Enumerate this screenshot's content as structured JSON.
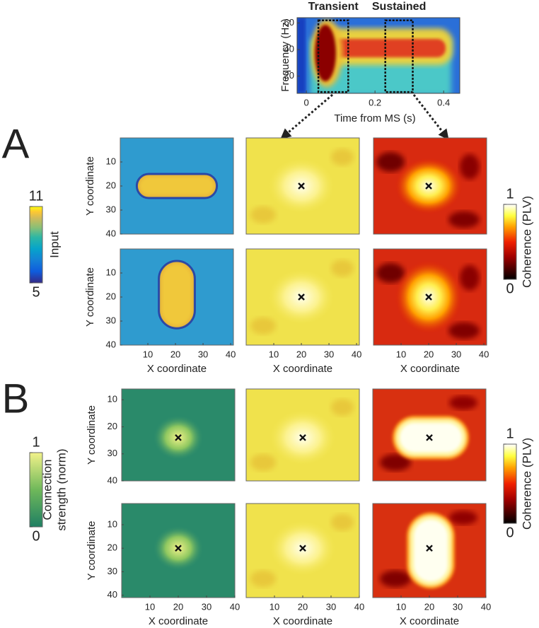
{
  "spectrogram": {
    "xlabel": "Time from MS (s)",
    "ylabel": "Frequency (Hz)",
    "xlim": [
      -0.027,
      0.447
    ],
    "ylim": [
      7,
      64
    ],
    "xticks": [
      0,
      0.2,
      0.4
    ],
    "yticks": [
      20,
      40,
      60
    ],
    "windows": [
      {
        "name": "Transient",
        "t": [
          0.035,
          0.122
        ],
        "f": [
          8,
          62
        ]
      },
      {
        "name": "Sustained",
        "t": [
          0.23,
          0.31
        ],
        "f": [
          8,
          62
        ]
      }
    ]
  },
  "panel_a": {
    "label": "A",
    "xlabel": "X coordinate",
    "ylabel": "Y coordinate",
    "xlim": [
      0,
      41
    ],
    "xticks": [
      10,
      20,
      30,
      40
    ],
    "rows": [
      {
        "ylim": [
          0,
          40
        ],
        "yticks": [
          10,
          20,
          30,
          40
        ],
        "marker": [
          20,
          20
        ]
      },
      {
        "ylim": [
          0,
          40
        ],
        "yticks": [
          10,
          20,
          30,
          40
        ],
        "marker": [
          20,
          20
        ]
      }
    ],
    "input_colorbar": {
      "label": "Input",
      "ticks": [
        5,
        11
      ]
    },
    "coherence_colorbar": {
      "label": "Coherence (PLV)",
      "ticks": [
        0,
        1
      ]
    }
  },
  "panel_b": {
    "label": "B",
    "xlabel": "X coordinate",
    "ylabel": "Y coordinate",
    "xlim": [
      0,
      40
    ],
    "xticks": [
      10,
      20,
      30,
      40
    ],
    "rows": [
      {
        "ylim": [
          6,
          40
        ],
        "yticks": [
          10,
          20,
          30,
          40
        ],
        "marker": [
          20,
          24
        ]
      },
      {
        "ylim": [
          1,
          41
        ],
        "yticks": [
          10,
          20,
          30,
          40
        ],
        "marker": [
          20,
          20
        ]
      }
    ],
    "connection_colorbar": {
      "label_lines": [
        "Connection",
        "strength (norm)"
      ],
      "ticks": [
        0,
        1
      ]
    },
    "coherence_colorbar": {
      "label": "Coherence (PLV)",
      "ticks": [
        0,
        1
      ]
    }
  }
}
